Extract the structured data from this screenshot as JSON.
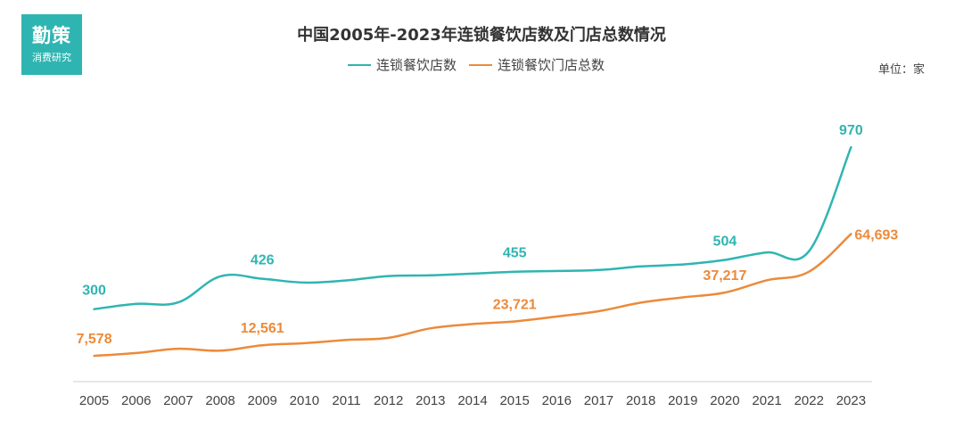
{
  "logo": {
    "main": "勤策",
    "sub": "消费研究"
  },
  "unit_label": "单位：家",
  "colors": {
    "brand": "#2fb5b1",
    "series_stores": "#2fb5b1",
    "series_outlets": "#ec8a3a",
    "axis": "#cccccc",
    "tick_text": "#444444"
  },
  "chart_data": {
    "type": "line",
    "title": "中国2005年-2023年连锁餐饮店数及门店总数情况",
    "xlabel": "",
    "ylabel": "",
    "categories": [
      "2005",
      "2006",
      "2007",
      "2008",
      "2009",
      "2010",
      "2011",
      "2012",
      "2013",
      "2014",
      "2015",
      "2016",
      "2017",
      "2018",
      "2019",
      "2020",
      "2021",
      "2022",
      "2023"
    ],
    "series": [
      {
        "name": "连锁餐饮店数",
        "values": [
          300,
          322,
          328,
          436,
          426,
          410,
          419,
          437,
          440,
          447,
          455,
          458,
          462,
          477,
          485,
          504,
          535,
          540,
          970
        ],
        "labels": {
          "0": "300",
          "4": "426",
          "10": "455",
          "15": "504",
          "18": "970"
        },
        "ylim": [
          0,
          1100
        ]
      },
      {
        "name": "连锁餐饮门店总数",
        "values": [
          7578,
          8900,
          10900,
          10000,
          12561,
          13500,
          15000,
          16000,
          20500,
          22500,
          23721,
          26000,
          28500,
          32500,
          35000,
          37217,
          43000,
          47000,
          64693
        ],
        "labels": {
          "0": "7,578",
          "4": "12,561",
          "10": "23,721",
          "15": "37,217",
          "18": "64,693"
        },
        "ylim": [
          -4500,
          120000
        ]
      }
    ],
    "grid": false,
    "legend": "top-center"
  }
}
